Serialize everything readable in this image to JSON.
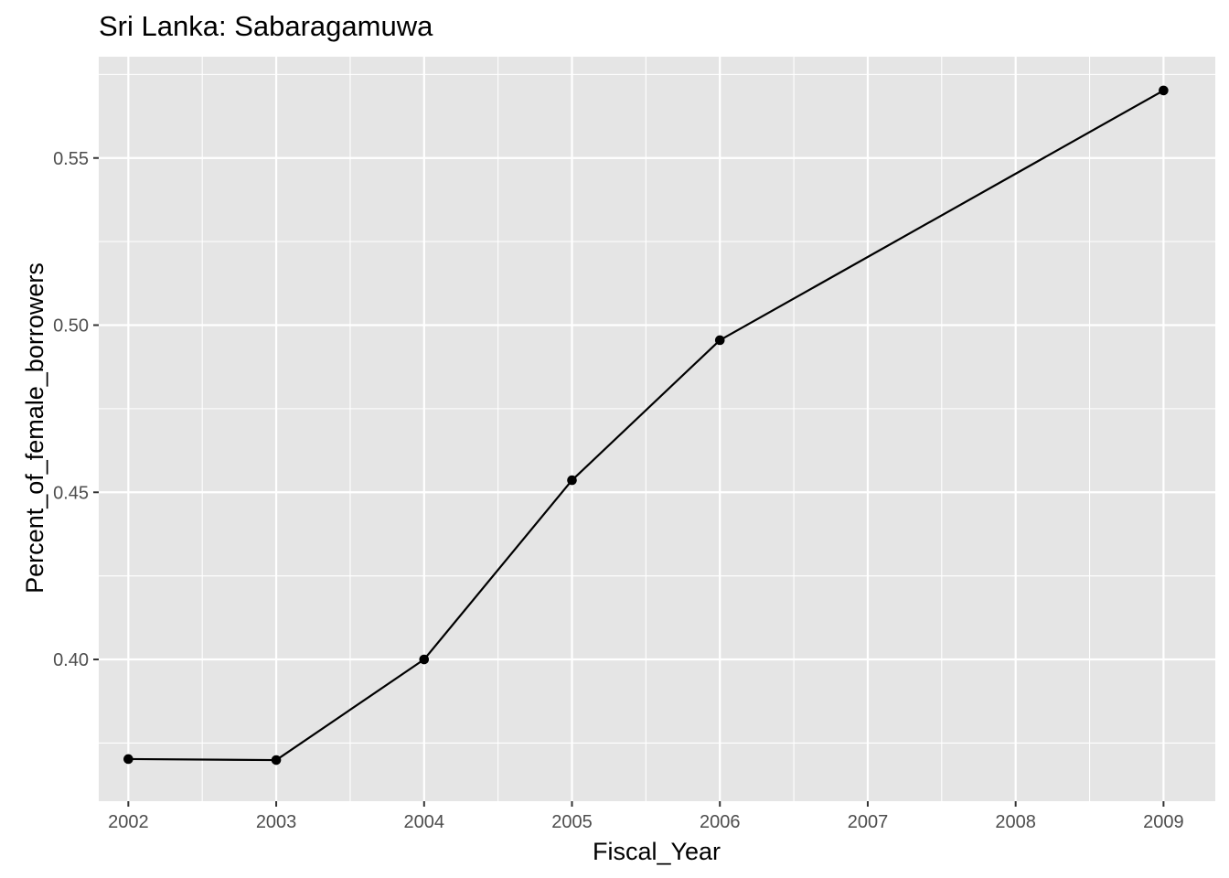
{
  "chart_data": {
    "type": "line",
    "title": "Sri Lanka:  Sabaragamuwa",
    "xlabel": "Fiscal_Year",
    "ylabel": "Percent_of_female_borrowers",
    "x": [
      2002,
      2003,
      2004,
      2005,
      2006,
      2009
    ],
    "y": [
      0.3702,
      0.3699,
      0.4,
      0.4536,
      0.4955,
      0.5702
    ],
    "xlim": [
      2001.8,
      2009.35
    ],
    "ylim": [
      0.3576,
      0.5803
    ],
    "x_ticks": [
      2002,
      2003,
      2004,
      2005,
      2006,
      2007,
      2008,
      2009
    ],
    "x_tick_labels": [
      "2002",
      "2003",
      "2004",
      "2005",
      "2006",
      "2007",
      "2008",
      "2009"
    ],
    "y_ticks": [
      0.4,
      0.45,
      0.5,
      0.55
    ],
    "y_tick_labels": [
      "0.40",
      "0.45",
      "0.50",
      "0.55"
    ],
    "grid": true,
    "colors": {
      "panel": "#e5e5e5",
      "grid": "#ffffff",
      "line": "#000000",
      "point": "#000000"
    }
  }
}
